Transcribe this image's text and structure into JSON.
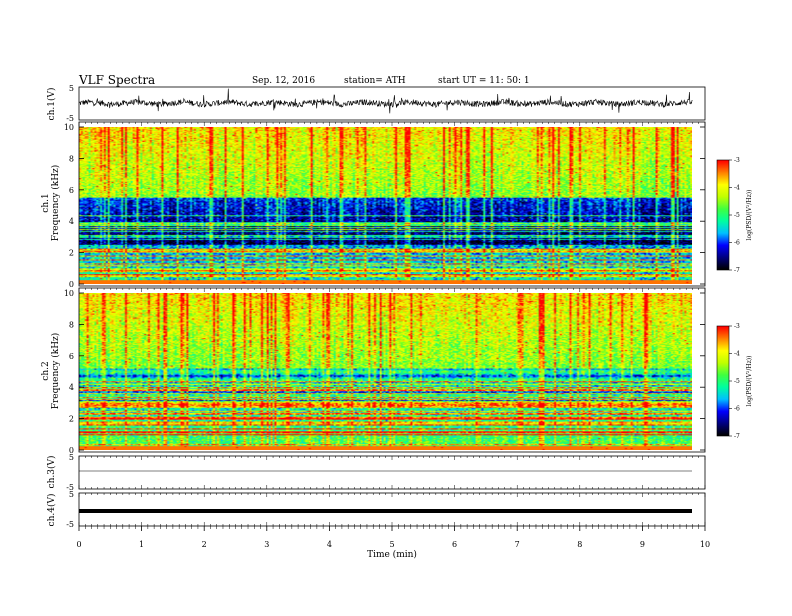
{
  "header": {
    "title": "VLF  Spectra",
    "date": "Sep. 12, 2016",
    "station": "station= ATH",
    "start": "start  UT  =    11: 50: 1"
  },
  "chart_data": [
    {
      "type": "line",
      "panel": "ch1-waveform",
      "ylabel": "ch.1(V)",
      "ylim": [
        -5,
        5
      ],
      "yticks": [
        "5",
        "-5"
      ],
      "description_series": "noisy voltage trace centred near 0 V",
      "xlim": [
        0,
        10
      ]
    },
    {
      "type": "heatmap",
      "panel": "ch1-spectrogram",
      "ylabel": "ch.1\nFrequency  (kHz)",
      "ylabel_top": "ch.1",
      "ylabel_bottom": "Frequency  (kHz)",
      "ylim": [
        0,
        10
      ],
      "yticks": [
        "0",
        "2",
        "4",
        "6",
        "8",
        "10"
      ],
      "xlim": [
        0,
        9.8
      ],
      "colorbar": {
        "label": "log(PSD/(V²/Hz))",
        "range": [
          -7,
          -3
        ],
        "ticks": [
          "-3",
          "-4",
          "-5",
          "-6",
          "-7"
        ]
      }
    },
    {
      "type": "heatmap",
      "panel": "ch2-spectrogram",
      "ylabel_top": "ch.2",
      "ylabel_bottom": "Frequency  (kHz)",
      "ylim": [
        0,
        10
      ],
      "yticks": [
        "0",
        "2",
        "4",
        "6",
        "8",
        "10"
      ],
      "xlim": [
        0,
        9.8
      ],
      "colorbar": {
        "label": "log(PSD/(V²/Hz))",
        "range": [
          -7,
          -3
        ],
        "ticks": [
          "-3",
          "-4",
          "-5",
          "-6",
          "-7"
        ]
      }
    },
    {
      "type": "line",
      "panel": "ch3-waveform",
      "ylabel": "ch.3(V)",
      "ylim": [
        -5,
        5
      ],
      "yticks": [
        "5",
        "-5"
      ],
      "value_level": 0
    },
    {
      "type": "line",
      "panel": "ch4-waveform",
      "ylabel": "ch.4(V)",
      "ylim": [
        -5,
        5
      ],
      "yticks": [
        "5",
        "-5"
      ],
      "value_level": 0
    }
  ],
  "xaxis": {
    "label": "Time  (min)",
    "range": [
      0,
      10
    ],
    "ticks": [
      "0",
      "1",
      "2",
      "3",
      "4",
      "5",
      "6",
      "7",
      "8",
      "9",
      "10"
    ]
  },
  "colors": {
    "palette": [
      "#000000",
      "#000080",
      "#0000ff",
      "#00c0ff",
      "#00ffa0",
      "#40ff40",
      "#c0ff00",
      "#ffff00",
      "#ff8000",
      "#ff0000",
      "#ffffff"
    ]
  }
}
